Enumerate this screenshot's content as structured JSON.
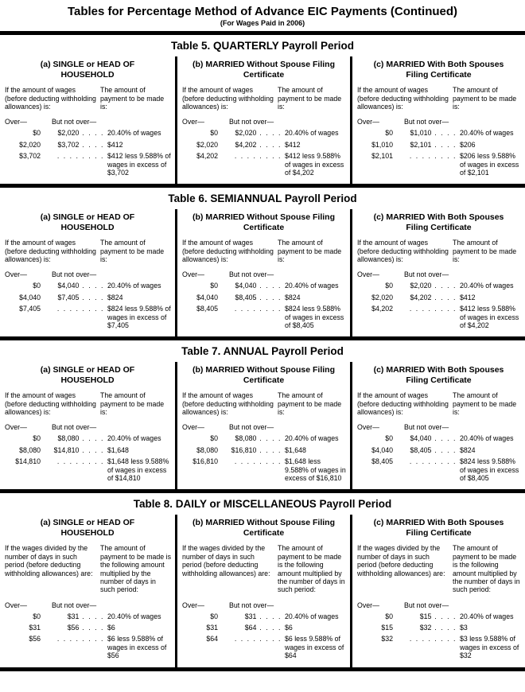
{
  "page": {
    "title": "Tables for Percentage Method of Advance EIC Payments (Continued)",
    "subtitle": "(For Wages Paid in 2006)"
  },
  "column_labels": {
    "over": "Over—",
    "but_not_over": "But not over—"
  },
  "tables": [
    {
      "title": "Table 5. QUARTERLY Payroll Period",
      "wage_header": "If the amount of wages (before deducting withholding allowances) is:",
      "payment_header": "The amount of payment to be made is:",
      "panels": [
        {
          "heading": "(a) SINGLE or HEAD OF HOUSEHOLD",
          "rows": [
            {
              "over": "$0",
              "but_not_over": "$2,020",
              "payment": "20.40% of wages"
            },
            {
              "over": "$2,020",
              "but_not_over": "$3,702",
              "payment": "$412"
            },
            {
              "over": "$3,702",
              "but_not_over": "",
              "payment": "$412 less 9.588% of wages in excess of $3,702"
            }
          ]
        },
        {
          "heading": "(b) MARRIED Without Spouse Filing Certificate",
          "rows": [
            {
              "over": "$0",
              "but_not_over": "$2,020",
              "payment": "20.40% of wages"
            },
            {
              "over": "$2,020",
              "but_not_over": "$4,202",
              "payment": "$412"
            },
            {
              "over": "$4,202",
              "but_not_over": "",
              "payment": "$412 less 9.588% of wages in excess of $4,202"
            }
          ]
        },
        {
          "heading": "(c) MARRIED With Both Spouses Filing Certificate",
          "rows": [
            {
              "over": "$0",
              "but_not_over": "$1,010",
              "payment": "20.40% of wages"
            },
            {
              "over": "$1,010",
              "but_not_over": "$2,101",
              "payment": "$206"
            },
            {
              "over": "$2,101",
              "but_not_over": "",
              "payment": "$206 less 9.588% of wages in excess of $2,101"
            }
          ]
        }
      ]
    },
    {
      "title": "Table 6. SEMIANNUAL Payroll Period",
      "wage_header": "If the amount of wages (before deducting withholding allowances) is:",
      "payment_header": "The amount of payment to be made is:",
      "panels": [
        {
          "heading": "(a) SINGLE or HEAD OF HOUSEHOLD",
          "rows": [
            {
              "over": "$0",
              "but_not_over": "$4,040",
              "payment": "20.40% of wages"
            },
            {
              "over": "$4,040",
              "but_not_over": "$7,405",
              "payment": "$824"
            },
            {
              "over": "$7,405",
              "but_not_over": "",
              "payment": "$824 less 9.588% of wages in excess of $7,405"
            }
          ]
        },
        {
          "heading": "(b) MARRIED Without Spouse Filing Certificate",
          "rows": [
            {
              "over": "$0",
              "but_not_over": "$4,040",
              "payment": "20.40% of wages"
            },
            {
              "over": "$4,040",
              "but_not_over": "$8,405",
              "payment": "$824"
            },
            {
              "over": "$8,405",
              "but_not_over": "",
              "payment": "$824 less 9.588% of wages in excess of $8,405"
            }
          ]
        },
        {
          "heading": "(c) MARRIED With Both Spouses Filing Certificate",
          "rows": [
            {
              "over": "$0",
              "but_not_over": "$2,020",
              "payment": "20.40% of wages"
            },
            {
              "over": "$2,020",
              "but_not_over": "$4,202",
              "payment": "$412"
            },
            {
              "over": "$4,202",
              "but_not_over": "",
              "payment": "$412 less 9.588% of wages in excess of $4,202"
            }
          ]
        }
      ]
    },
    {
      "title": "Table 7. ANNUAL Payroll Period",
      "wage_header": "If the amount of wages (before deducting withholding allowances) is:",
      "payment_header": "The amount of payment to be made is:",
      "panels": [
        {
          "heading": "(a) SINGLE or HEAD OF HOUSEHOLD",
          "rows": [
            {
              "over": "$0",
              "but_not_over": "$8,080",
              "payment": "20.40% of wages"
            },
            {
              "over": "$8,080",
              "but_not_over": "$14,810",
              "payment": "$1,648"
            },
            {
              "over": "$14,810",
              "but_not_over": "",
              "payment": "$1,648 less 9.588% of wages in excess of $14,810"
            }
          ]
        },
        {
          "heading": "(b) MARRIED Without Spouse Filing Certificate",
          "rows": [
            {
              "over": "$0",
              "but_not_over": "$8,080",
              "payment": "20.40% of wages"
            },
            {
              "over": "$8,080",
              "but_not_over": "$16,810",
              "payment": "$1,648"
            },
            {
              "over": "$16,810",
              "but_not_over": "",
              "payment": "$1,648 less 9.588% of wages in excess of $16,810"
            }
          ]
        },
        {
          "heading": "(c) MARRIED With Both Spouses Filing Certificate",
          "rows": [
            {
              "over": "$0",
              "but_not_over": "$4,040",
              "payment": "20.40% of wages"
            },
            {
              "over": "$4,040",
              "but_not_over": "$8,405",
              "payment": "$824"
            },
            {
              "over": "$8,405",
              "but_not_over": "",
              "payment": "$824 less 9.588% of wages in excess of $8,405"
            }
          ]
        }
      ]
    },
    {
      "title": "Table 8. DAILY or MISCELLANEOUS Payroll Period",
      "wage_header": "If the wages divided by the number of days in such period (before deducting withholding allowances) are:",
      "payment_header": "The amount of payment to be made is the following amount multiplied by the number of days in such period:",
      "panels": [
        {
          "heading": "(a) SINGLE or HEAD OF HOUSEHOLD",
          "rows": [
            {
              "over": "$0",
              "but_not_over": "$31",
              "payment": "20.40% of wages"
            },
            {
              "over": "$31",
              "but_not_over": "$56",
              "payment": "$6"
            },
            {
              "over": "$56",
              "but_not_over": "",
              "payment": "$6 less 9.588% of wages in excess of $56"
            }
          ]
        },
        {
          "heading": "(b) MARRIED Without Spouse Filing Certificate",
          "rows": [
            {
              "over": "$0",
              "but_not_over": "$31",
              "payment": "20.40% of wages"
            },
            {
              "over": "$31",
              "but_not_over": "$64",
              "payment": "$6"
            },
            {
              "over": "$64",
              "but_not_over": "",
              "payment": "$6 less 9.588% of wages in excess of $64"
            }
          ]
        },
        {
          "heading": "(c) MARRIED With Both Spouses Filing Certificate",
          "rows": [
            {
              "over": "$0",
              "but_not_over": "$15",
              "payment": "20.40% of wages"
            },
            {
              "over": "$15",
              "but_not_over": "$32",
              "payment": "$3"
            },
            {
              "over": "$32",
              "but_not_over": "",
              "payment": "$3 less 9.588% of wages in excess of $32"
            }
          ]
        }
      ]
    }
  ]
}
